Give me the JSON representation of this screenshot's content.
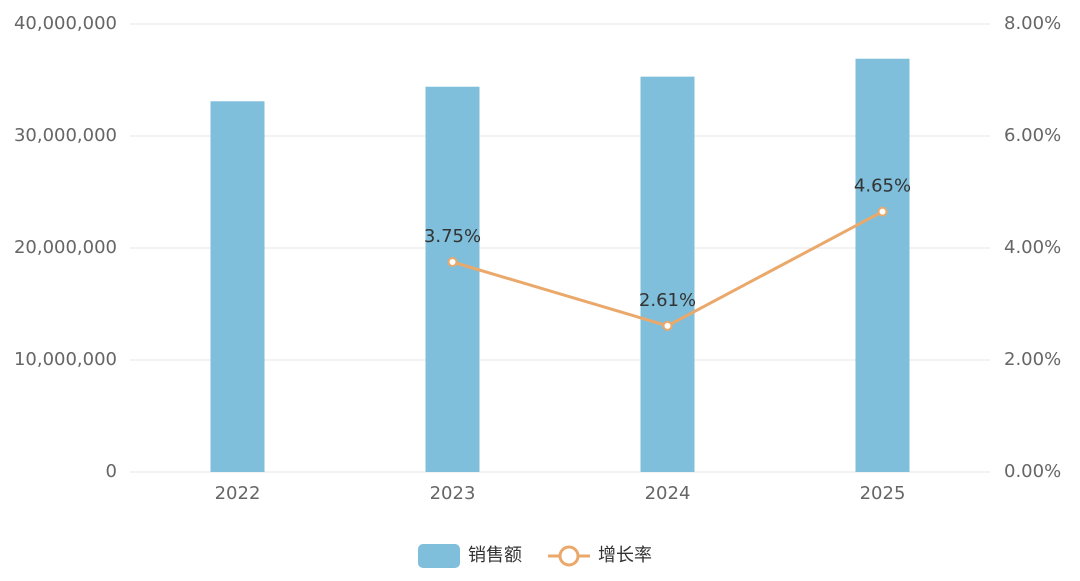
{
  "chart_data": {
    "type": "bar_line",
    "categories": [
      "2022",
      "2023",
      "2024",
      "2025"
    ],
    "series": [
      {
        "name": "销售额",
        "type": "bar",
        "color": "#7fbfdb",
        "values": [
          33100000,
          34400000,
          35300000,
          36900000
        ]
      },
      {
        "name": "增长率",
        "type": "line",
        "axis": "y2",
        "color": "#eaa96b",
        "values": [
          null,
          3.75,
          2.61,
          4.65
        ],
        "value_labels": [
          null,
          "3.75%",
          "2.61%",
          "4.65%"
        ]
      }
    ],
    "ylim": [
      0,
      40000000
    ],
    "yticks": [
      0,
      {
        "value": 10000000,
        "label": "10,000,000"
      },
      {
        "value": 20000000,
        "label": "20,000,000"
      },
      {
        "value": 30000000,
        "label": "30,000,000"
      },
      {
        "value": 40000000,
        "label": "40,000,000"
      }
    ],
    "y2lim": [
      0,
      8
    ],
    "y2ticks": [
      {
        "value": 0,
        "label": "0.00%"
      },
      {
        "value": 2,
        "label": "2.00%"
      },
      {
        "value": 4,
        "label": "4.00%"
      },
      {
        "value": 6,
        "label": "6.00%"
      },
      {
        "value": 8,
        "label": "8.00%"
      }
    ],
    "grid": true,
    "legend": "bottom"
  }
}
